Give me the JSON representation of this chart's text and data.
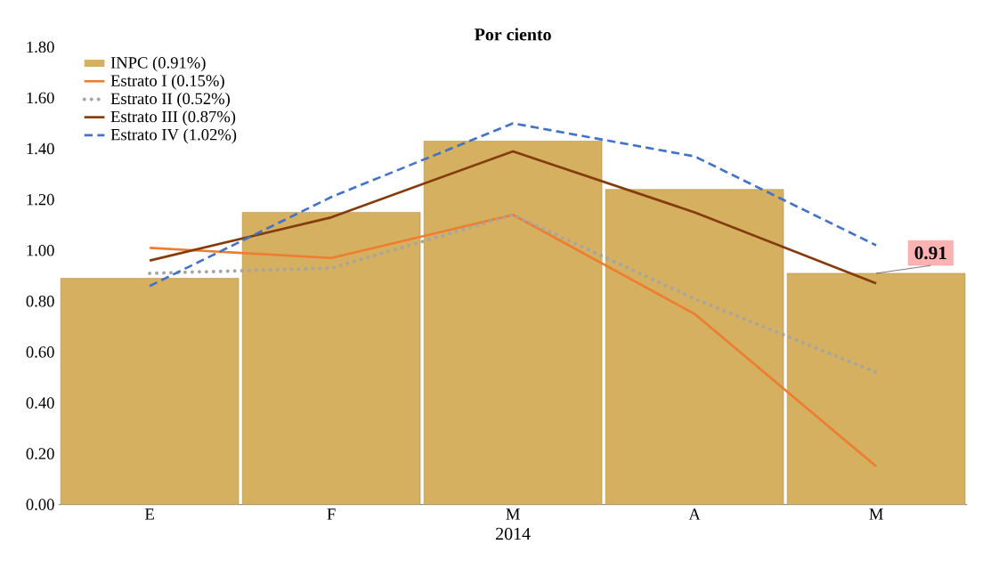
{
  "chart_data": {
    "type": "bar",
    "title": "Por ciento",
    "xlabel": "2014",
    "categories": [
      "E",
      "F",
      "M",
      "A",
      "M"
    ],
    "series": [
      {
        "name": "INPC (0.91%)",
        "color": "#d4b060",
        "values": [
          0.89,
          1.15,
          1.43,
          1.24,
          0.91
        ]
      },
      {
        "name": "Estrato I (0.15%)",
        "type": "line",
        "color": "#ed7d31",
        "line_style": "solid",
        "values": [
          1.01,
          0.97,
          1.14,
          0.75,
          0.15
        ]
      },
      {
        "name": "Estrato II (0.52%)",
        "type": "line",
        "color": "#a5a5a5",
        "line_style": "dotted",
        "values": [
          0.91,
          0.93,
          1.14,
          0.81,
          0.52
        ]
      },
      {
        "name": "Estrato III (0.87%)",
        "type": "line",
        "color": "#843c0c",
        "line_style": "solid",
        "values": [
          0.96,
          1.13,
          1.39,
          1.15,
          0.87
        ]
      },
      {
        "name": "Estrato IV (1.02%)",
        "type": "line",
        "color": "#4472c4",
        "line_style": "dashed",
        "values": [
          0.86,
          1.21,
          1.5,
          1.37,
          1.02
        ]
      }
    ],
    "ylim": [
      0,
      1.8
    ],
    "yticks": [
      {
        "value": 0,
        "label": "0.00"
      },
      {
        "value": 0.2,
        "label": "0.20"
      },
      {
        "value": 0.4,
        "label": "0.40"
      },
      {
        "value": 0.6,
        "label": "0.60"
      },
      {
        "value": 0.8,
        "label": "0.80"
      },
      {
        "value": 1.0,
        "label": "1.00"
      },
      {
        "value": 1.2,
        "label": "1.20"
      },
      {
        "value": 1.4,
        "label": "1.40"
      },
      {
        "value": 1.6,
        "label": "1.60"
      },
      {
        "value": 1.8,
        "label": "1.80"
      }
    ],
    "legend": "top left",
    "grid": false,
    "annotations": [
      {
        "text": "0.91",
        "y": 0.91
      }
    ]
  }
}
